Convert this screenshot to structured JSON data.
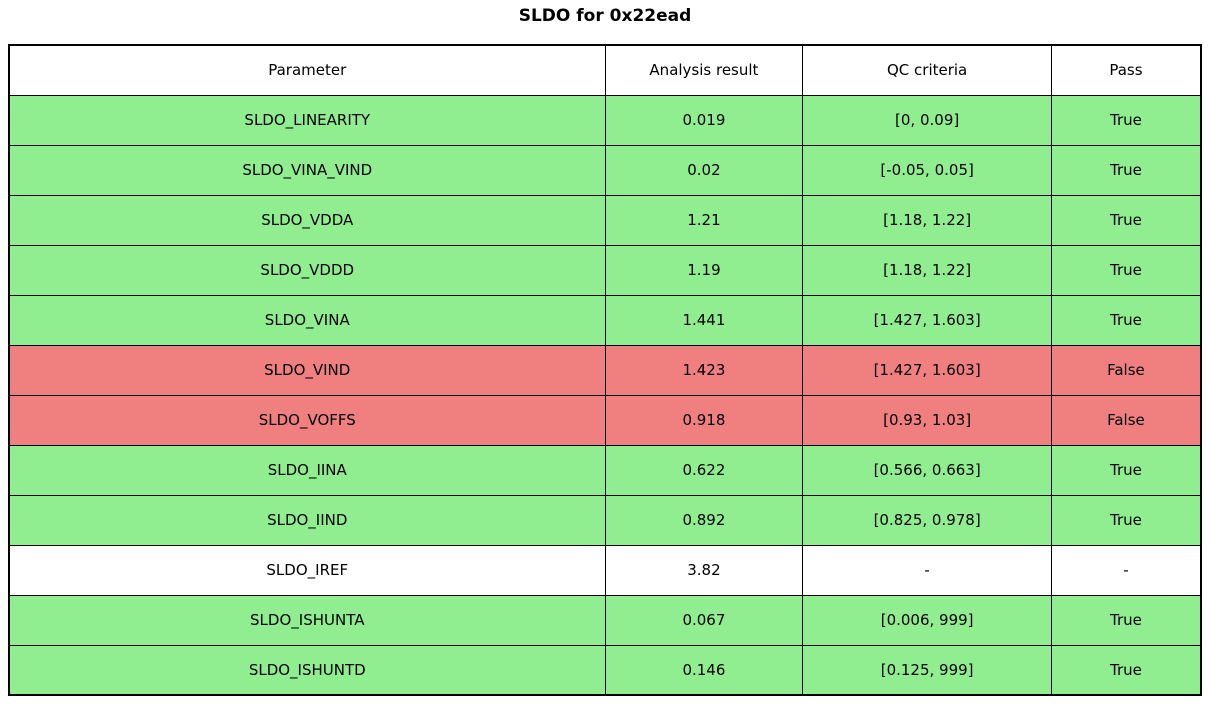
{
  "title": "SLDO for 0x22ead",
  "colors": {
    "pass_row": "#90ee90",
    "fail_row": "#f08080",
    "neutral_row": "#ffffff",
    "border": "#000000",
    "text": "#000000"
  },
  "chart_data": {
    "type": "table",
    "title": "SLDO for 0x22ead",
    "columns": [
      "Parameter",
      "Analysis result",
      "QC criteria",
      "Pass"
    ],
    "rows": [
      {
        "parameter": "SLDO_LINEARITY",
        "result": "0.019",
        "criteria": "[0, 0.09]",
        "pass": "True",
        "status": "pass"
      },
      {
        "parameter": "SLDO_VINA_VIND",
        "result": "0.02",
        "criteria": "[-0.05, 0.05]",
        "pass": "True",
        "status": "pass"
      },
      {
        "parameter": "SLDO_VDDA",
        "result": "1.21",
        "criteria": "[1.18, 1.22]",
        "pass": "True",
        "status": "pass"
      },
      {
        "parameter": "SLDO_VDDD",
        "result": "1.19",
        "criteria": "[1.18, 1.22]",
        "pass": "True",
        "status": "pass"
      },
      {
        "parameter": "SLDO_VINA",
        "result": "1.441",
        "criteria": "[1.427, 1.603]",
        "pass": "True",
        "status": "pass"
      },
      {
        "parameter": "SLDO_VIND",
        "result": "1.423",
        "criteria": "[1.427, 1.603]",
        "pass": "False",
        "status": "fail"
      },
      {
        "parameter": "SLDO_VOFFS",
        "result": "0.918",
        "criteria": "[0.93, 1.03]",
        "pass": "False",
        "status": "fail"
      },
      {
        "parameter": "SLDO_IINA",
        "result": "0.622",
        "criteria": "[0.566, 0.663]",
        "pass": "True",
        "status": "pass"
      },
      {
        "parameter": "SLDO_IIND",
        "result": "0.892",
        "criteria": "[0.825, 0.978]",
        "pass": "True",
        "status": "pass"
      },
      {
        "parameter": "SLDO_IREF",
        "result": "3.82",
        "criteria": "-",
        "pass": "-",
        "status": "neutral"
      },
      {
        "parameter": "SLDO_ISHUNTA",
        "result": "0.067",
        "criteria": "[0.006, 999]",
        "pass": "True",
        "status": "pass"
      },
      {
        "parameter": "SLDO_ISHUNTD",
        "result": "0.146",
        "criteria": "[0.125, 999]",
        "pass": "True",
        "status": "pass"
      }
    ]
  }
}
